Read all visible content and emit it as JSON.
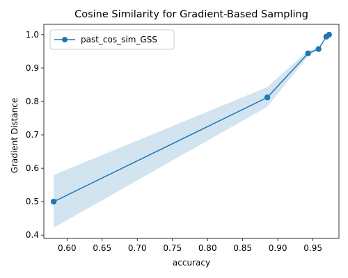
{
  "chart_data": {
    "type": "line",
    "title": "Cosine Similarity for Gradient-Based Sampling",
    "xlabel": "accuracy",
    "ylabel": "Gradient Distance",
    "xlim": [
      0.567,
      0.987
    ],
    "ylim": [
      0.39,
      1.031
    ],
    "xticks": [
      0.6,
      0.65,
      0.7,
      0.75,
      0.8,
      0.85,
      0.9,
      0.95
    ],
    "xtick_labels": [
      "0.60",
      "0.65",
      "0.70",
      "0.75",
      "0.80",
      "0.85",
      "0.90",
      "0.95"
    ],
    "yticks": [
      0.4,
      0.5,
      0.6,
      0.7,
      0.8,
      0.9,
      1.0
    ],
    "ytick_labels": [
      "0.4",
      "0.5",
      "0.6",
      "0.7",
      "0.8",
      "0.9",
      "1.0"
    ],
    "grid": false,
    "legend_position": "top-left",
    "colors": {
      "line": "#1f77b4",
      "band": "#1f77b4"
    },
    "series": [
      {
        "name": "past_cos_sim_GSS",
        "x": [
          0.581,
          0.885,
          0.943,
          0.958,
          0.969,
          0.973
        ],
        "y": [
          0.5,
          0.812,
          0.944,
          0.957,
          0.994,
          1.0
        ],
        "band_lower": [
          0.422,
          0.784,
          0.936,
          0.955,
          0.993,
          1.0
        ],
        "band_upper": [
          0.58,
          0.843,
          0.952,
          0.959,
          0.995,
          1.0
        ]
      }
    ]
  }
}
